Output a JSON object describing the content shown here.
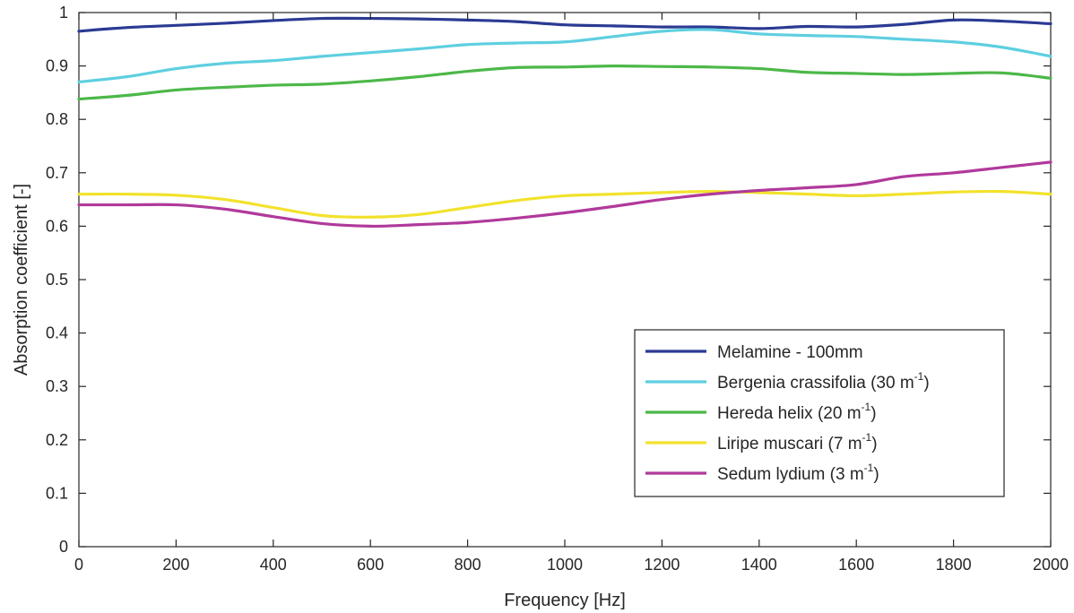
{
  "chart_data": {
    "type": "line",
    "xlabel": "Frequency [Hz]",
    "ylabel": "Absorption coefficient [-]",
    "xlim": [
      0,
      2000
    ],
    "ylim": [
      0,
      1
    ],
    "xticks": [
      0,
      200,
      400,
      600,
      800,
      1000,
      1200,
      1400,
      1600,
      1800,
      2000
    ],
    "yticks": [
      0,
      0.1,
      0.2,
      0.3,
      0.4,
      0.5,
      0.6,
      0.7,
      0.8,
      0.9,
      1
    ],
    "xtick_labels": [
      "0",
      "200",
      "400",
      "600",
      "800",
      "1000",
      "1200",
      "1400",
      "1600",
      "1800",
      "2000"
    ],
    "ytick_labels": [
      "0",
      "0.1",
      "0.2",
      "0.3",
      "0.4",
      "0.5",
      "0.6",
      "0.7",
      "0.8",
      "0.9",
      "1"
    ],
    "grid": false,
    "legend_position": "bottom-right",
    "x": [
      0,
      100,
      200,
      300,
      400,
      500,
      600,
      700,
      800,
      900,
      1000,
      1100,
      1200,
      1300,
      1400,
      1500,
      1600,
      1700,
      1800,
      1900,
      2000
    ],
    "series": [
      {
        "name": "Melamine - 100mm",
        "legend_main": "Melamine - 100mm",
        "legend_sup": "",
        "legend_tail": "",
        "color": "#2b3a93",
        "values": [
          0.965,
          0.972,
          0.976,
          0.98,
          0.985,
          0.989,
          0.989,
          0.988,
          0.986,
          0.983,
          0.977,
          0.975,
          0.973,
          0.973,
          0.97,
          0.974,
          0.973,
          0.978,
          0.986,
          0.984,
          0.979
        ]
      },
      {
        "name": "Bergenia crassifolia (30 m-1)",
        "legend_main": "Bergenia crassifolia (30 m",
        "legend_sup": "-1",
        "legend_tail": ")",
        "color": "#5ecfe0",
        "values": [
          0.87,
          0.88,
          0.895,
          0.905,
          0.91,
          0.918,
          0.925,
          0.932,
          0.94,
          0.943,
          0.945,
          0.955,
          0.965,
          0.968,
          0.96,
          0.957,
          0.955,
          0.95,
          0.945,
          0.935,
          0.918
        ]
      },
      {
        "name": "Hereda helix (20 m-1)",
        "legend_main": "Hereda helix (20 m",
        "legend_sup": "-1",
        "legend_tail": ")",
        "color": "#4cb848",
        "values": [
          0.838,
          0.845,
          0.855,
          0.86,
          0.864,
          0.866,
          0.872,
          0.88,
          0.89,
          0.897,
          0.898,
          0.9,
          0.899,
          0.898,
          0.895,
          0.888,
          0.886,
          0.884,
          0.886,
          0.887,
          0.877
        ]
      },
      {
        "name": "Liripe muscari (7 m-1)",
        "legend_main": "Liripe muscari (7 m",
        "legend_sup": "-1",
        "legend_tail": ")",
        "color": "#f2e22c",
        "values": [
          0.66,
          0.66,
          0.658,
          0.65,
          0.635,
          0.62,
          0.617,
          0.622,
          0.635,
          0.648,
          0.657,
          0.66,
          0.663,
          0.665,
          0.663,
          0.66,
          0.657,
          0.66,
          0.664,
          0.665,
          0.66
        ]
      },
      {
        "name": "Sedum lydium (3 m-1)",
        "legend_main": "Sedum lydium (3 m",
        "legend_sup": "-1",
        "legend_tail": ")",
        "color": "#b0399b",
        "values": [
          0.64,
          0.64,
          0.64,
          0.632,
          0.618,
          0.605,
          0.6,
          0.603,
          0.607,
          0.615,
          0.625,
          0.637,
          0.65,
          0.66,
          0.667,
          0.672,
          0.678,
          0.693,
          0.7,
          0.71,
          0.72
        ]
      }
    ]
  }
}
